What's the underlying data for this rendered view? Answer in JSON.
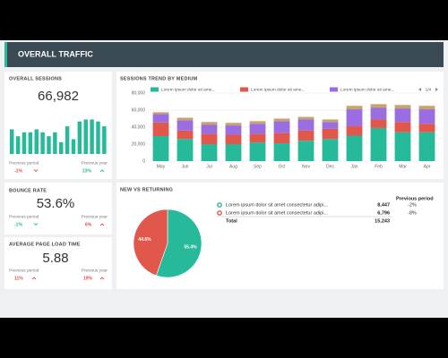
{
  "header": {
    "title": "OVERALL TRAFFIC"
  },
  "kpis": [
    {
      "title": "OVERALL SESSIONS",
      "value": "66,982",
      "left_label": "Previous period",
      "left_change": "-1%",
      "right_label": "Previous year",
      "right_change": "23%"
    },
    {
      "title": "BOUNCE RATE",
      "value": "53.6%",
      "left_label": "Previous period",
      "left_change": "-1%",
      "right_label": "Previous year",
      "right_change": "6%"
    },
    {
      "title": "AVERAGE PAGE LOAD TIME",
      "value": "5.88",
      "left_label": "Previous period",
      "left_change": "11%",
      "right_label": "Previous year",
      "right_change": "19%"
    }
  ],
  "chart_data": [
    {
      "type": "bar",
      "color": "#26b99a",
      "values": [
        25,
        18,
        22,
        22,
        25,
        22,
        18,
        22,
        12,
        28,
        15,
        33,
        35,
        35,
        33,
        28
      ]
    },
    {
      "type": "stacked_bar",
      "title": "SESSIONS TREND BY MEDIUM",
      "categories": [
        "May",
        "Jun",
        "Jul",
        "Aug",
        "Sep",
        "Oct",
        "Nov",
        "Dec",
        "Jan",
        "Feb",
        "Mar",
        "Apr"
      ],
      "series": [
        {
          "name": "Lorem ipsum dolor sit ame...",
          "color": "#26b99a",
          "values": [
            29500,
            26000,
            20000,
            20000,
            22000,
            21000,
            24000,
            26000,
            30000,
            39000,
            34000,
            34000
          ]
        },
        {
          "name": "Lorem ipsum dolor sit ame...",
          "color": "#e2574c",
          "values": [
            16000,
            10000,
            12000,
            11000,
            10000,
            12000,
            12000,
            12000,
            11000,
            10000,
            12000,
            10000
          ]
        },
        {
          "name": "Lorem ipsum dolor sit ame...",
          "color": "#9a6ee0",
          "values": [
            10000,
            12000,
            11000,
            11000,
            12000,
            14000,
            13000,
            8000,
            20000,
            14000,
            16000,
            17000
          ]
        },
        {
          "name": null,
          "color": "#c9a26c",
          "values": [
            2000,
            3000,
            3000,
            3000,
            3000,
            3000,
            3000,
            3000,
            4000,
            4000,
            4000,
            4000
          ]
        }
      ],
      "ylim": [
        0,
        80000
      ],
      "yticks": [
        0,
        {
          "value": 20000,
          "label": "20,000"
        },
        {
          "value": 40000,
          "label": "40,000"
        },
        {
          "value": 60000,
          "label": "60,000"
        },
        {
          "value": 80000,
          "label": "80,000"
        }
      ],
      "grid": true,
      "legend_page": "1/4"
    },
    {
      "type": "pie",
      "title": "NEW VS RETURNING",
      "values": [
        55.4,
        44.6
      ],
      "value_labels": [
        "55.4%",
        "44.6%"
      ],
      "colors": [
        "#26b99a",
        "#e2574c"
      ]
    }
  ],
  "table": {
    "header": "Previous period",
    "rows": [
      [
        "Lorem ipsum dolor sit amet consectetur adipi...",
        "8,447",
        "-2%"
      ],
      [
        "Lorem ipsum dolor sit amet consectetur adipi...",
        "6,796",
        "-8%"
      ]
    ],
    "total": [
      "Total",
      "15,243"
    ]
  }
}
